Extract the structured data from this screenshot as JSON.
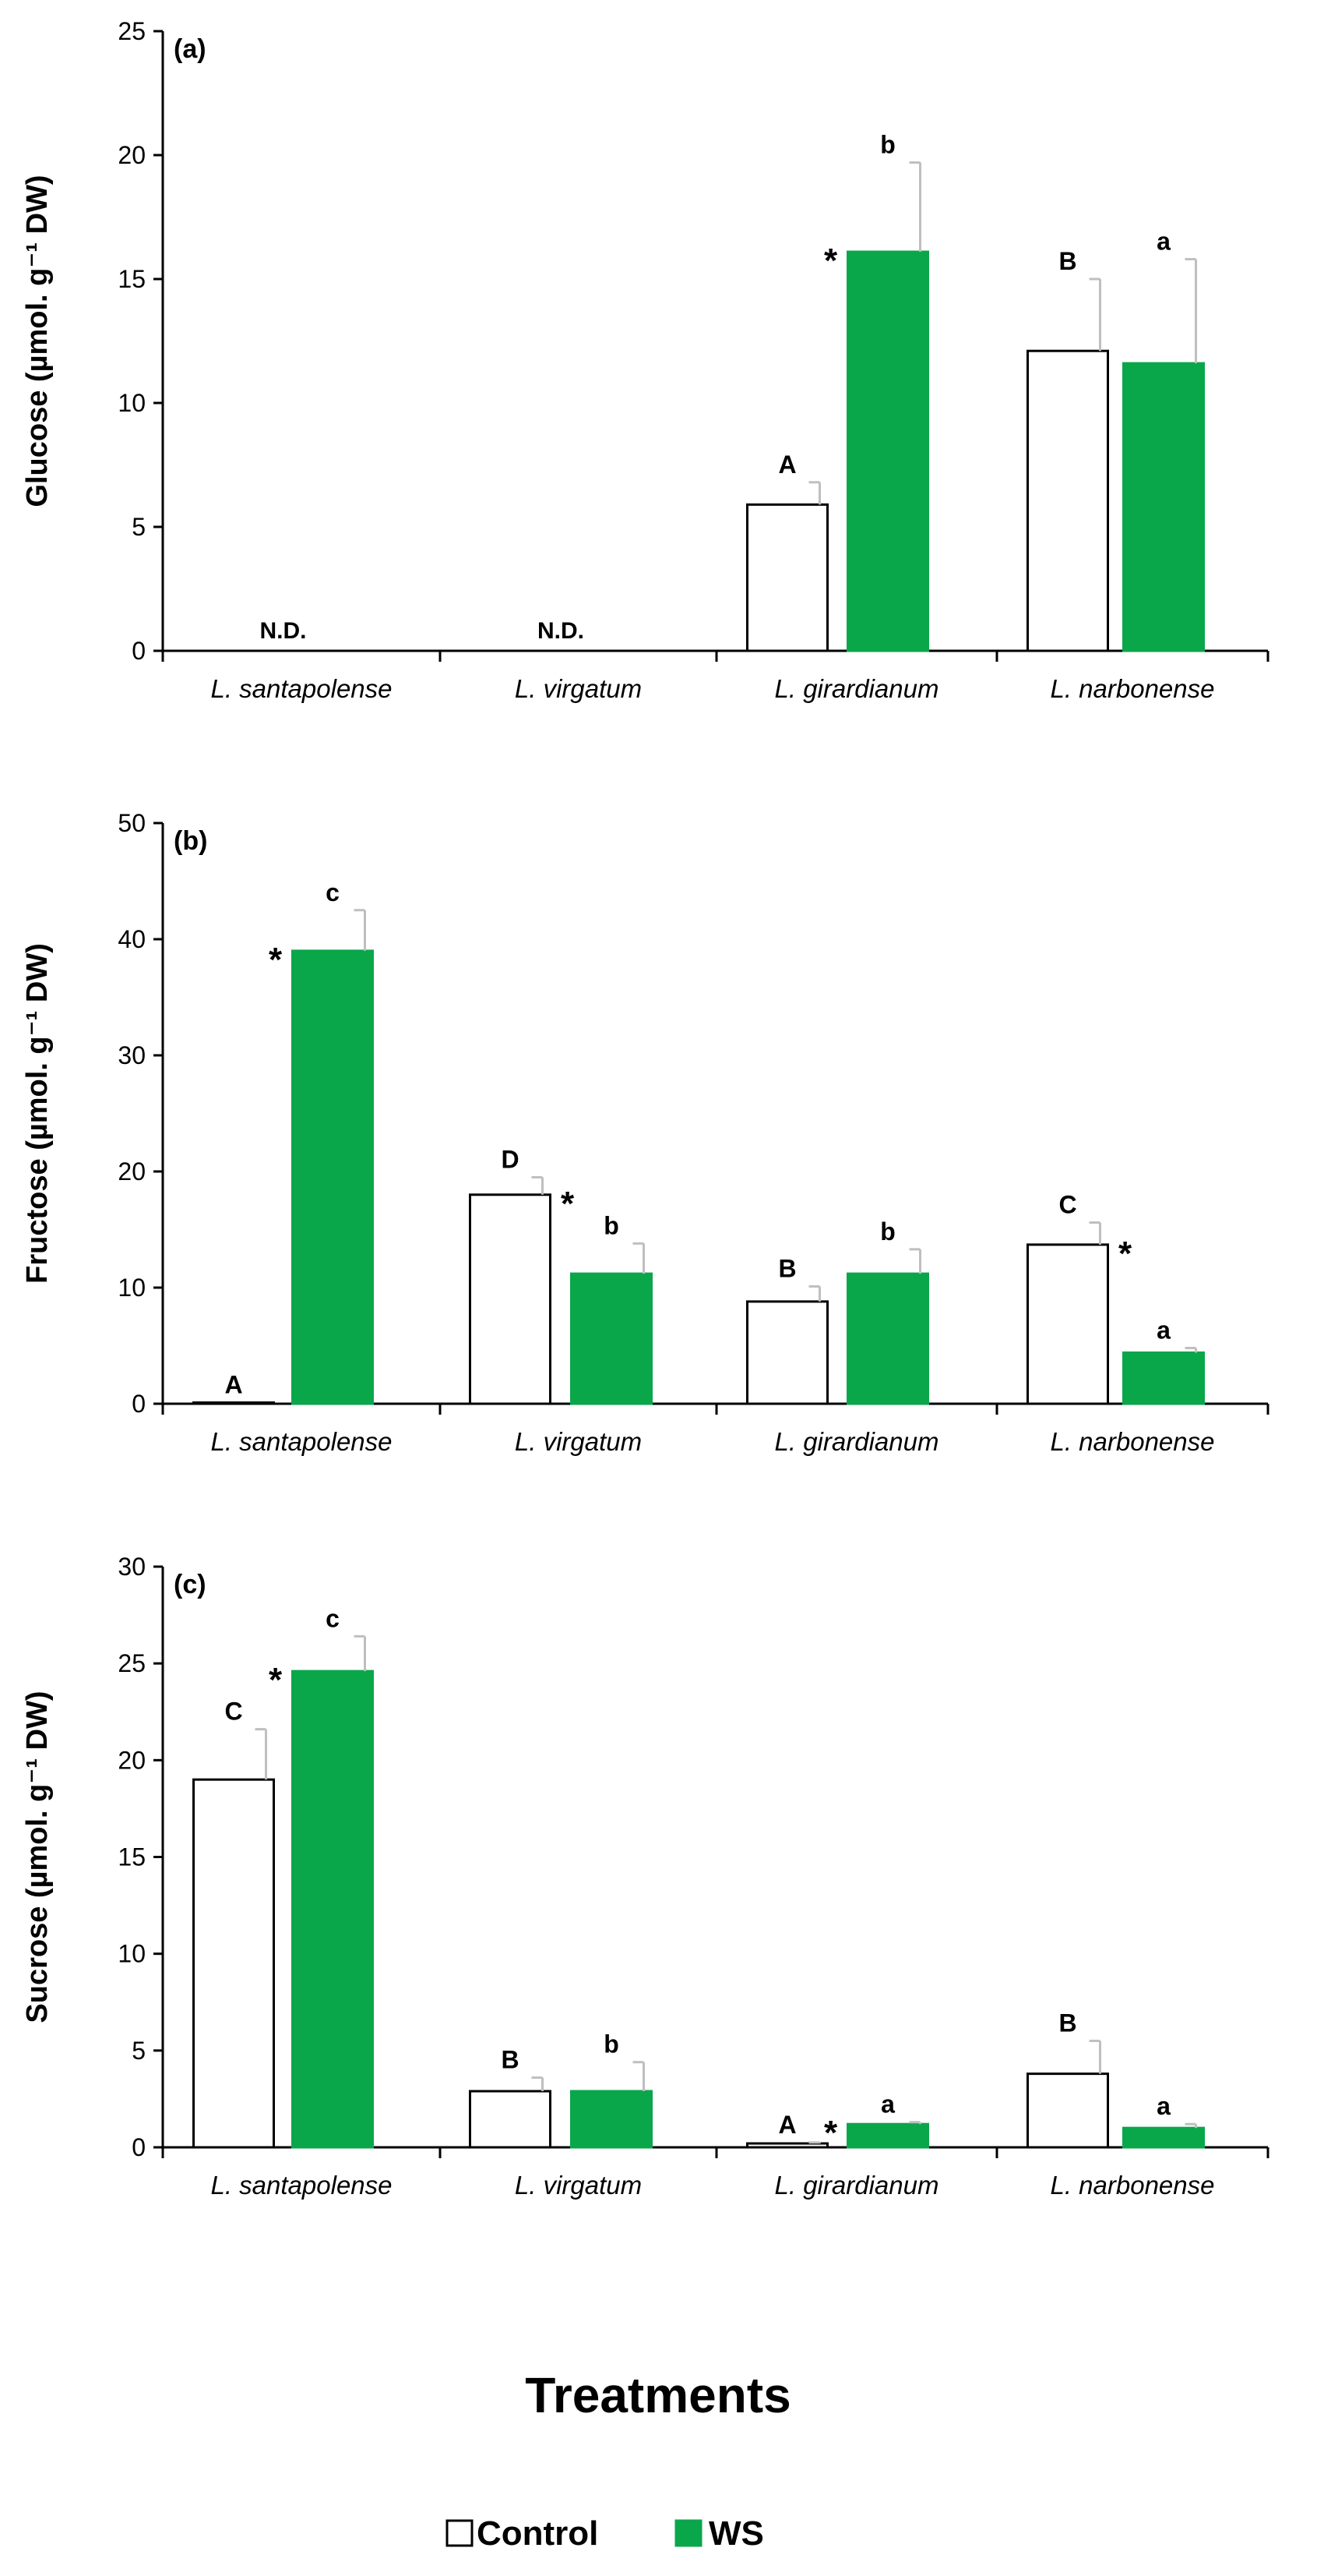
{
  "colors": {
    "control": "#ffffff",
    "ws": "#0aa64a",
    "axis": "#000000",
    "error_bar": "#bfbfbf"
  },
  "x_axis_title": "Treatments",
  "legend": [
    {
      "label": "Control",
      "color": "#ffffff"
    },
    {
      "label": "WS",
      "color": "#0aa64a"
    }
  ],
  "chart_data": [
    {
      "type": "bar",
      "panel": "(a)",
      "ylabel": "Glucose (µmol. g⁻¹ DW)",
      "ylim": [
        0,
        25
      ],
      "yticks": [
        0,
        5,
        10,
        15,
        20,
        25
      ],
      "categories": [
        "L. santapolense",
        "L. virgatum",
        "L. girardianum",
        "L. narbonense"
      ],
      "series": [
        {
          "name": "Control",
          "values": [
            null,
            null,
            5.9,
            12.1
          ],
          "errors": [
            null,
            null,
            0.9,
            2.9
          ],
          "letters": [
            null,
            null,
            "A",
            "B"
          ]
        },
        {
          "name": "WS",
          "values": [
            null,
            null,
            16.1,
            11.6
          ],
          "errors": [
            null,
            null,
            3.6,
            4.2
          ],
          "letters": [
            null,
            null,
            "b",
            "a"
          ]
        }
      ],
      "asterisks": [
        {
          "category": 2,
          "series": 1
        }
      ],
      "not_detected": [
        {
          "category": 0,
          "label": "N.D."
        },
        {
          "category": 1,
          "label": "N.D."
        }
      ]
    },
    {
      "type": "bar",
      "panel": "(b)",
      "ylabel": "Fructose (µmol. g⁻¹ DW)",
      "ylim": [
        0,
        50
      ],
      "yticks": [
        0,
        10,
        20,
        30,
        40,
        50
      ],
      "categories": [
        "L. santapolense",
        "L. virgatum",
        "L. girardianum",
        "L. narbonense"
      ],
      "series": [
        {
          "name": "Control",
          "values": [
            0.1,
            18.0,
            8.8,
            13.7
          ],
          "errors": [
            0,
            1.5,
            1.3,
            1.9
          ],
          "letters": [
            "A",
            "D",
            "B",
            "C"
          ]
        },
        {
          "name": "WS",
          "values": [
            39.0,
            11.2,
            11.2,
            4.4
          ],
          "errors": [
            3.5,
            2.6,
            2.1,
            0.4
          ],
          "letters": [
            "c",
            "b",
            "b",
            "a"
          ]
        }
      ],
      "asterisks": [
        {
          "category": 0,
          "series": 1
        },
        {
          "category": 1,
          "series": 0
        },
        {
          "category": 3,
          "series": 0
        }
      ],
      "not_detected": []
    },
    {
      "type": "bar",
      "panel": "(c)",
      "ylabel": "Sucrose (µmol. g⁻¹ DW)",
      "ylim": [
        0,
        30
      ],
      "yticks": [
        0,
        5,
        10,
        15,
        20,
        25,
        30
      ],
      "categories": [
        "L. santapolense",
        "L. virgatum",
        "L. girardianum",
        "L. narbonense"
      ],
      "series": [
        {
          "name": "Control",
          "values": [
            19.0,
            2.9,
            0.2,
            3.8
          ],
          "errors": [
            2.6,
            0.7,
            0.05,
            1.7
          ],
          "letters": [
            "C",
            "B",
            "A",
            "B"
          ]
        },
        {
          "name": "WS",
          "values": [
            24.6,
            2.9,
            1.2,
            1.0
          ],
          "errors": [
            1.8,
            1.5,
            0.1,
            0.2
          ],
          "letters": [
            "c",
            "b",
            "a",
            "a"
          ]
        }
      ],
      "asterisks": [
        {
          "category": 0,
          "series": 1
        },
        {
          "category": 2,
          "series": 1
        }
      ],
      "not_detected": []
    }
  ]
}
